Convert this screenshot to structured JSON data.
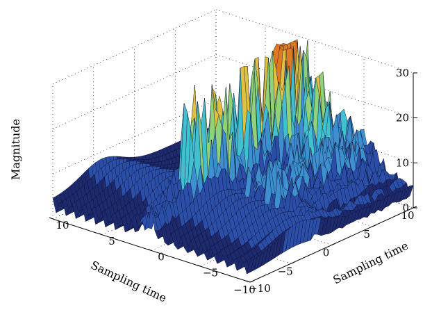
{
  "chart_data": {
    "type": "surface",
    "title": "",
    "zlabel": "Magnitude",
    "xlabel": "Sampling time",
    "ylabel": "Sampling time",
    "zlim": [
      0,
      30
    ],
    "xlim": [
      -10,
      10
    ],
    "ylim": [
      -10,
      10
    ],
    "z_ticks": [
      "0",
      "10",
      "20",
      "30"
    ],
    "x_ticks": [
      "10",
      "5",
      "0",
      "−5",
      "−10"
    ],
    "y_ticks": [
      "−10",
      "−5",
      "0",
      "5",
      "10"
    ],
    "grid": true,
    "colormap": [
      "#1e2a6e",
      "#2b4fa8",
      "#3d8fd0",
      "#42c0d0",
      "#8fd27a",
      "#e0c040",
      "#e07a20"
    ],
    "surface_description_values": {
      "ridge_peak_magnitude": 31,
      "background_magnitude": 5
    }
  }
}
